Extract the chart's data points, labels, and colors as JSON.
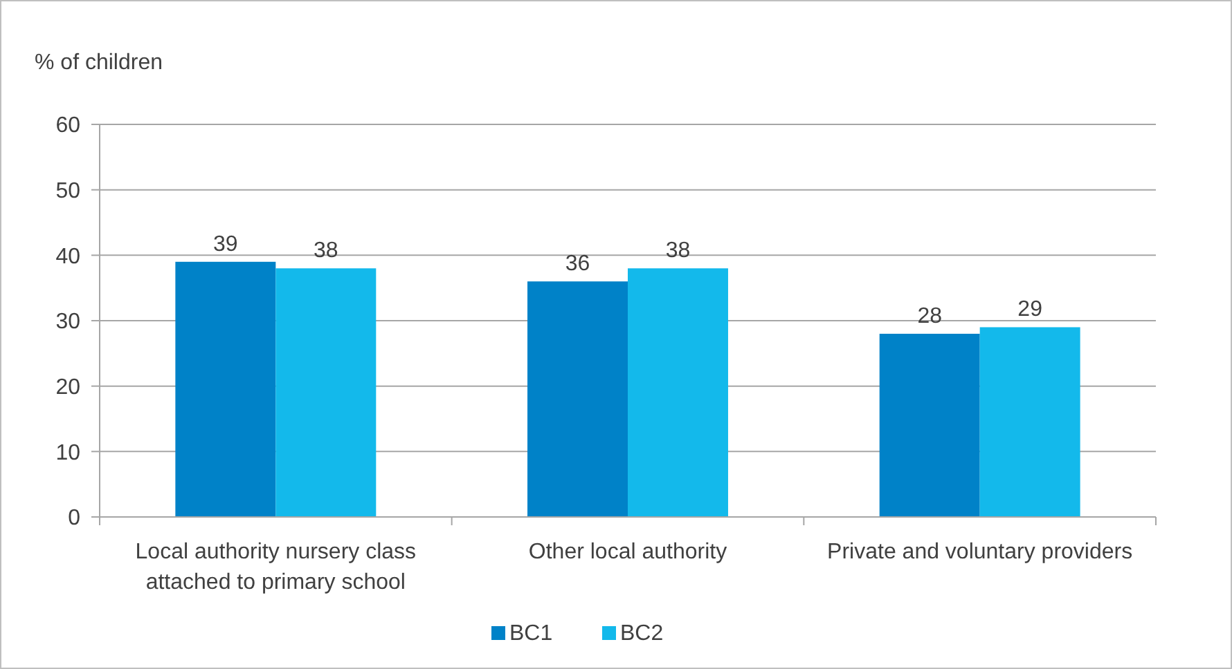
{
  "chart_data": {
    "type": "bar",
    "ylabel": "% of children",
    "categories": [
      "Local authority nursery class attached to primary school",
      "Other local authority",
      "Private and voluntary providers"
    ],
    "series": [
      {
        "name": "BC1",
        "color": "#0082c8",
        "values": [
          39,
          36,
          28
        ]
      },
      {
        "name": "BC2",
        "color": "#13b9eb",
        "values": [
          38,
          38,
          29
        ]
      }
    ],
    "ylim": [
      0,
      60
    ],
    "yticks": [
      0,
      10,
      20,
      30,
      40,
      50,
      60
    ],
    "grid": "y",
    "legend": "bottom",
    "data_labels": true
  }
}
